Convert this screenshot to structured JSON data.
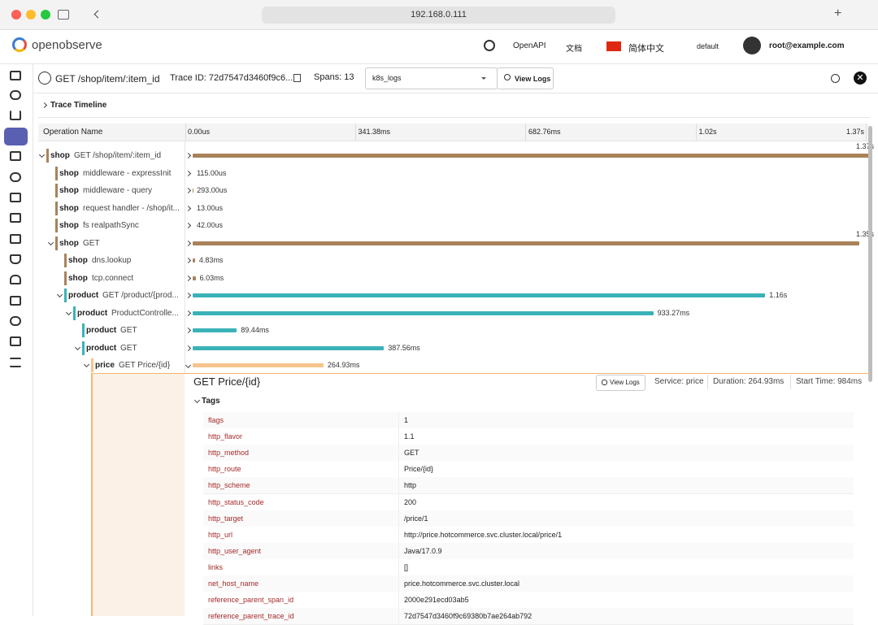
{
  "browser": {
    "url": "192.168.0.111"
  },
  "header": {
    "logo": "openobserve",
    "nav": [
      "OpenAPI",
      "文档"
    ],
    "language": "简体中文",
    "org": "default",
    "user": "root@example.com"
  },
  "trace": {
    "title": "GET /shop/item/:item_id",
    "trace_id": "Trace ID: 72d7547d3460f9c6...",
    "spans": "Spans: 13",
    "stream": "k8s_logs",
    "view_logs": "View Logs"
  },
  "timeline": {
    "label": "Trace Timeline",
    "column": "Operation Name",
    "xlim": [
      0,
      1365.52
    ],
    "xticks": [
      {
        "value": 0,
        "label": "0.00us"
      },
      {
        "value": 341.38,
        "label": "341.38ms"
      },
      {
        "value": 682.76,
        "label": "682.76ms"
      },
      {
        "value": 1024.14,
        "label": "1.02s"
      },
      {
        "value": 1365.52,
        "label": "1.37s"
      }
    ]
  },
  "spans": [
    {
      "service": "shop",
      "operation": "GET /shop/item/:item_id",
      "depth": 0,
      "duration": 1370,
      "duration_label": "1.37s",
      "color": "#a9825a",
      "expanded": true
    },
    {
      "service": "shop",
      "operation": "middleware - expressInit",
      "depth": 1,
      "duration": 0.115,
      "duration_label": "115.00us",
      "color": "#a9825a",
      "expanded": false
    },
    {
      "service": "shop",
      "operation": "middleware - query",
      "depth": 1,
      "duration": 0.293,
      "duration_label": "293.00us",
      "color": "#a9825a",
      "expanded": false
    },
    {
      "service": "shop",
      "operation": "request handler - /shop/it...",
      "depth": 1,
      "duration": 0.013,
      "duration_label": "13.00us",
      "color": "#a9825a",
      "expanded": false
    },
    {
      "service": "shop",
      "operation": "fs realpathSync",
      "depth": 1,
      "duration": 0.042,
      "duration_label": "42.00us",
      "color": "#a9825a",
      "expanded": false
    },
    {
      "service": "shop",
      "operation": "GET",
      "depth": 1,
      "duration": 1350,
      "duration_label": "1.35s",
      "color": "#a9825a",
      "expanded": true
    },
    {
      "service": "shop",
      "operation": "dns.lookup",
      "depth": 2,
      "duration": 4.83,
      "duration_label": "4.83ms",
      "color": "#a9825a",
      "expanded": false
    },
    {
      "service": "shop",
      "operation": "tcp.connect",
      "depth": 2,
      "duration": 6.03,
      "duration_label": "6.03ms",
      "color": "#a9825a",
      "expanded": false
    },
    {
      "service": "product",
      "operation": "GET /product/{prod...",
      "depth": 2,
      "duration": 1160,
      "duration_label": "1.16s",
      "color": "#3bb2b8",
      "expanded": true
    },
    {
      "service": "product",
      "operation": "ProductControlle...",
      "depth": 3,
      "duration": 933.27,
      "duration_label": "933.27ms",
      "color": "#3bb2b8",
      "expanded": true
    },
    {
      "service": "product",
      "operation": "GET",
      "depth": 4,
      "duration": 89.44,
      "duration_label": "89.44ms",
      "color": "#3bb2b8",
      "expanded": false
    },
    {
      "service": "product",
      "operation": "GET",
      "depth": 4,
      "duration": 387.56,
      "duration_label": "387.56ms",
      "color": "#3bb2b8",
      "expanded": true
    },
    {
      "service": "price",
      "operation": "GET Price/{id}",
      "depth": 5,
      "duration": 264.93,
      "duration_label": "264.93ms",
      "color": "#f6c48c",
      "expanded": true
    }
  ],
  "detail": {
    "title": "GET Price/{id}",
    "view_logs": "View Logs",
    "service": "Service: price",
    "duration": "Duration: 264.93ms",
    "start_time": "Start Time: 984ms",
    "tags_label": "Tags",
    "tags": [
      [
        "flags",
        "1"
      ],
      [
        "http_flavor",
        "1.1"
      ],
      [
        "http_method",
        "GET"
      ],
      [
        "http_route",
        "Price/{id}"
      ],
      [
        "http_scheme",
        "http"
      ],
      [
        "http_status_code",
        "200"
      ],
      [
        "http_target",
        "/price/1"
      ],
      [
        "http_url",
        "http://price.hotcommerce.svc.cluster.local/price/1"
      ],
      [
        "http_user_agent",
        "Java/17.0.9"
      ],
      [
        "links",
        "[]"
      ],
      [
        "net_host_name",
        "price.hotcommerce.svc.cluster.local"
      ],
      [
        "reference_parent_span_id",
        "2000e291ecd03ab5"
      ],
      [
        "reference_parent_trace_id",
        "72d7547d3460f9c69380b7ae264ab792"
      ]
    ]
  }
}
